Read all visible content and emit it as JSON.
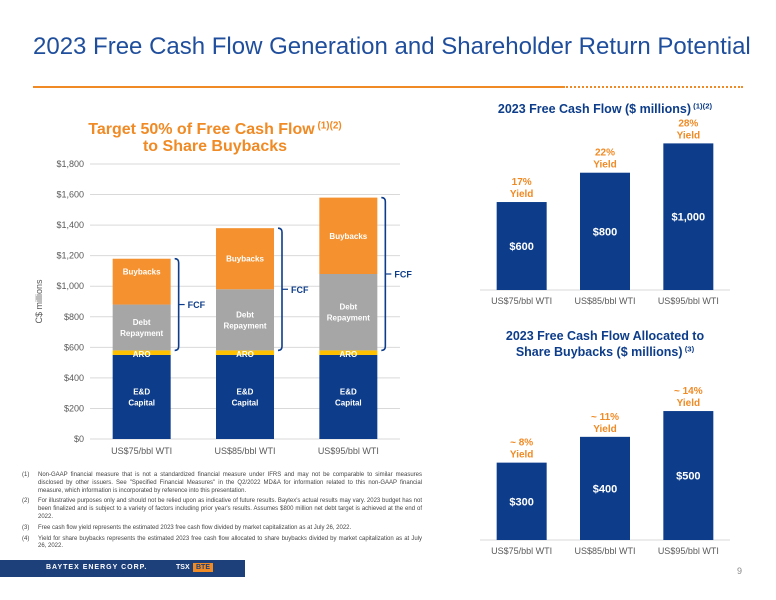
{
  "header": {
    "title": "2023 Free Cash Flow Generation and Shareholder Return Potential"
  },
  "colors": {
    "accent": "#f08a24",
    "brand_blue": "#1f4e9c",
    "bar_blue": "#0d3d8a",
    "debt_gray": "#a6a6a6",
    "aro_yellow": "#ffc000",
    "grid": "#d9d9d9"
  },
  "chart_data": [
    {
      "type": "bar",
      "stacked": true,
      "title": "Target 50% of Free Cash Flow",
      "title_superscript": "(1)(2)",
      "title_line2": "to Share Buybacks",
      "ylabel": "C$ millions",
      "xlabel": "",
      "ylim": [
        0,
        1800
      ],
      "yticks": [
        "$0",
        "$200",
        "$400",
        "$600",
        "$800",
        "$1,000",
        "$1,200",
        "$1,400",
        "$1,600",
        "$1,800"
      ],
      "categories": [
        "US$75/bbl WTI",
        "US$85/bbl WTI",
        "US$95/bbl WTI"
      ],
      "grid": true,
      "series": [
        {
          "name": "E&D Capital",
          "color": "#0d3d8a",
          "values": [
            550,
            550,
            550
          ]
        },
        {
          "name": "ARO",
          "color": "#ffc000",
          "values": [
            30,
            30,
            30
          ]
        },
        {
          "name": "Debt Repayment",
          "color": "#a6a6a6",
          "values": [
            300,
            400,
            500
          ]
        },
        {
          "name": "Buybacks",
          "color": "#f5922f",
          "values": [
            300,
            400,
            500
          ]
        }
      ],
      "label_lines": {
        "E&D Capital": [
          "E&D",
          "Capital"
        ],
        "ARO": [
          "ARO"
        ],
        "Debt Repayment": [
          "Debt",
          "Repayment"
        ],
        "Buybacks": [
          "Buybacks"
        ]
      },
      "bracket_label": "FCF"
    },
    {
      "type": "bar",
      "title": "2023 Free Cash Flow ($ millions)",
      "title_superscript": "(1)(2)",
      "categories": [
        "US$75/bbl WTI",
        "US$85/bbl WTI",
        "US$95/bbl WTI"
      ],
      "values": [
        600,
        800,
        1000
      ],
      "value_labels": [
        "$600",
        "$800",
        "$1,000"
      ],
      "annotations": [
        [
          "17%",
          "Yield"
        ],
        [
          "22%",
          "Yield"
        ],
        [
          "28%",
          "Yield"
        ]
      ],
      "ylim": [
        0,
        1180
      ]
    },
    {
      "type": "bar",
      "title": "2023 Free Cash Flow Allocated to",
      "title_line2": "Share Buybacks ($ millions)",
      "title_superscript": "(3)",
      "categories": [
        "US$75/bbl WTI",
        "US$85/bbl WTI",
        "US$95/bbl WTI"
      ],
      "values": [
        300,
        400,
        500
      ],
      "value_labels": [
        "$300",
        "$400",
        "$500"
      ],
      "annotations": [
        [
          "~ 8%",
          "Yield"
        ],
        [
          "~ 11%",
          "Yield"
        ],
        [
          "~ 14%",
          "Yield"
        ]
      ],
      "ylim": [
        0,
        760
      ]
    }
  ],
  "footnotes": [
    {
      "num": "(1)",
      "text": "Non-GAAP financial measure that is not a standardized financial measure under IFRS and may not be comparable to similar measures disclosed by other issuers. See \"Specified Financial Measures\" in the Q2/2022 MD&A for information related to this non-GAAP financial measure, which information is incorporated by reference into this presentation."
    },
    {
      "num": "(2)",
      "text": "For illustrative purposes only and should not be relied upon as indicative of future results. Baytex's actual results may vary. 2023 budget has not been finalized and is subject to a variety of factors including prior year's results. Assumes $800 million net debt target is achieved at the end of 2022."
    },
    {
      "num": "(3)",
      "text": "Free cash flow yield represents the estimated 2023 free cash flow divided by market capitalization as at July 26, 2022."
    },
    {
      "num": "(4)",
      "text": "Yield for share buybacks represents the estimated 2023 free cash flow allocated to share buybacks divided by market capitalization as at July 26, 2022."
    }
  ],
  "footer": {
    "brand": "BAYTEX ENERGY CORP.",
    "exchange": "TSX",
    "ticker": "BTE",
    "page": "9"
  }
}
